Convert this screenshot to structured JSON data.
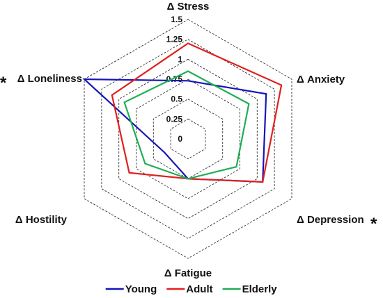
{
  "chart_data": {
    "type": "radar",
    "axes": [
      "Δ Stress",
      "Δ Anxiety",
      "Δ Depression",
      "Δ Fatigue",
      "Δ Hostility",
      "Δ Loneliness"
    ],
    "rlim": [
      0,
      1.5
    ],
    "ticks": [
      "0",
      "0.25",
      "0.5",
      "0.75",
      "1",
      "1.25",
      "1.5"
    ],
    "significance_markers": [
      {
        "axis": "Δ Loneliness",
        "symbol": "*"
      },
      {
        "axis": "Δ Depression",
        "symbol": "*"
      }
    ],
    "grid": true,
    "legend_position": "bottom",
    "series": [
      {
        "name": "Young",
        "color": "#1515b8",
        "values": [
          0.73,
          1.13,
          1.08,
          0.5,
          0.34,
          1.5
        ]
      },
      {
        "name": "Adult",
        "color": "#e0201e",
        "values": [
          1.2,
          1.35,
          1.08,
          0.5,
          0.85,
          1.1
        ]
      },
      {
        "name": "Elderly",
        "color": "#1fae55",
        "values": [
          0.85,
          0.88,
          0.7,
          0.5,
          0.62,
          0.92
        ]
      }
    ]
  }
}
